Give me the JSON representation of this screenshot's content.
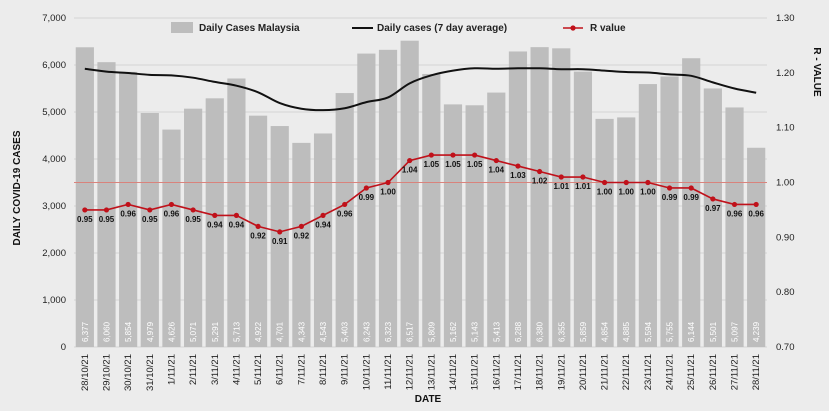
{
  "chart_data": {
    "type": "bar",
    "xlabel": "DATE",
    "ylabel": "DAILY COVID-19 CASES",
    "y2label": "R - VALUE",
    "ylim": [
      0,
      7000
    ],
    "y2lim": [
      0.7,
      1.3
    ],
    "yticks": [
      "0",
      "1,000",
      "2,000",
      "3,000",
      "4,000",
      "5,000",
      "6,000",
      "7,000"
    ],
    "y2ticks": [
      "0.70",
      "0.80",
      "0.90",
      "1.00",
      "1.10",
      "1.20",
      "1.30"
    ],
    "categories": [
      "28/10/21",
      "29/10/21",
      "30/10/21",
      "31/10/21",
      "1/11/21",
      "2/11/21",
      "3/11/21",
      "4/11/21",
      "5/11/21",
      "6/11/21",
      "7/11/21",
      "8/11/21",
      "9/11/21",
      "10/11/21",
      "11/11/21",
      "12/11/21",
      "13/11/21",
      "14/11/21",
      "15/11/21",
      "16/11/21",
      "17/11/21",
      "18/11/21",
      "19/11/21",
      "20/11/21",
      "21/11/21",
      "22/11/21",
      "23/11/21",
      "24/11/21",
      "25/11/21",
      "26/11/21",
      "27/11/21",
      "28/11/21"
    ],
    "reference_line": 1.0,
    "legend_position": "top",
    "series": [
      {
        "name": "Daily Cases Malaysia",
        "type": "bar",
        "color": "#bdbdbd",
        "values": [
          6377,
          6060,
          5854,
          4979,
          4626,
          5071,
          5291,
          5713,
          4922,
          4701,
          4343,
          4543,
          5403,
          6243,
          6323,
          6517,
          5809,
          5162,
          5143,
          5413,
          6288,
          6380,
          6355,
          5859,
          4854,
          4885,
          5594,
          5755,
          6144,
          5501,
          5097,
          4239
        ],
        "labels": [
          "6,377",
          "6,060",
          "5,854",
          "4,979",
          "4,626",
          "5,071",
          "5,291",
          "5,713",
          "4,922",
          "4,701",
          "4,343",
          "4,543",
          "5,403",
          "6,243",
          "6,323",
          "6,517",
          "5,809",
          "5,162",
          "5,143",
          "5,413",
          "6,288",
          "6,380",
          "6,355",
          "5,859",
          "4,854",
          "4,885",
          "5,594",
          "5,755",
          "6,144",
          "5,501",
          "5,097",
          "4,239"
        ]
      },
      {
        "name": "Daily cases (7 day average)",
        "type": "line",
        "color": "#111111",
        "values": [
          5920,
          5860,
          5830,
          5790,
          5780,
          5730,
          5640,
          5560,
          5420,
          5190,
          5070,
          5040,
          5080,
          5210,
          5310,
          5610,
          5780,
          5880,
          5930,
          5920,
          5930,
          5930,
          5910,
          5910,
          5880,
          5850,
          5840,
          5800,
          5770,
          5630,
          5500,
          5410
        ]
      },
      {
        "name": "R value",
        "type": "line",
        "axis": "right",
        "color": "#c0111a",
        "values": [
          0.95,
          0.95,
          0.96,
          0.95,
          0.96,
          0.95,
          0.94,
          0.94,
          0.92,
          0.91,
          0.92,
          0.94,
          0.96,
          0.99,
          1.0,
          1.04,
          1.05,
          1.05,
          1.05,
          1.04,
          1.03,
          1.02,
          1.01,
          1.01,
          1.0,
          1.0,
          1.0,
          0.99,
          0.99,
          0.97,
          0.96,
          0.96
        ],
        "labels": [
          "0.95",
          "0.95",
          "0.96",
          "0.95",
          "0.96",
          "0.95",
          "0.94",
          "0.94",
          "0.92",
          "0.91",
          "0.92",
          "0.94",
          "0.96",
          "0.99",
          "1.00",
          "1.04",
          "1.05",
          "1.05",
          "1.05",
          "1.04",
          "1.03",
          "1.02",
          "1.01",
          "1.01",
          "1.00",
          "1.00",
          "1.00",
          "0.99",
          "0.99",
          "0.97",
          "0.96",
          "0.96"
        ]
      }
    ]
  }
}
